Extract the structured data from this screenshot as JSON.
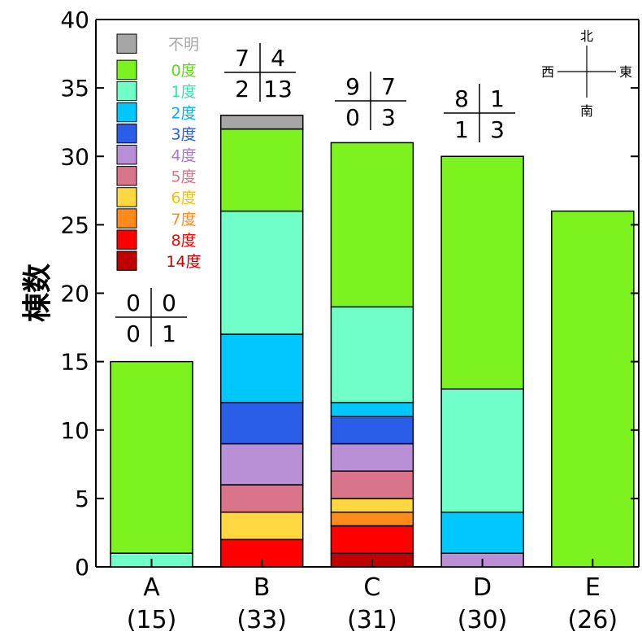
{
  "chart_data": {
    "type": "bar",
    "stacked": true,
    "ylabel": "棟数",
    "ylim": [
      0,
      40
    ],
    "yticks": [
      0,
      5,
      10,
      15,
      20,
      25,
      30,
      35,
      40
    ],
    "categories": [
      "A",
      "B",
      "C",
      "D",
      "E"
    ],
    "category_counts": [
      "(15)",
      "(33)",
      "(31)",
      "(30)",
      "(26)"
    ],
    "series": [
      {
        "name": "14度",
        "color": "#c00000",
        "values": [
          0,
          0,
          1,
          0,
          0
        ]
      },
      {
        "name": "8度",
        "color": "#ff0000",
        "values": [
          0,
          2,
          2,
          0,
          0
        ]
      },
      {
        "name": "7度",
        "color": "#ff8c1a",
        "values": [
          0,
          0,
          1,
          0,
          0
        ]
      },
      {
        "name": "6度",
        "color": "#ffd740",
        "values": [
          0,
          2,
          1,
          0,
          0
        ]
      },
      {
        "name": "5度",
        "color": "#d9748a",
        "values": [
          0,
          2,
          2,
          0,
          0
        ]
      },
      {
        "name": "4度",
        "color": "#b98fd6",
        "values": [
          0,
          3,
          2,
          1,
          0
        ]
      },
      {
        "name": "3度",
        "color": "#2a5ee8",
        "values": [
          0,
          3,
          2,
          0,
          0
        ]
      },
      {
        "name": "2度",
        "color": "#00c8ff",
        "values": [
          0,
          5,
          1,
          3,
          0
        ]
      },
      {
        "name": "1度",
        "color": "#70ffc8",
        "values": [
          1,
          9,
          7,
          9,
          0
        ]
      },
      {
        "name": "0度",
        "color": "#7cf31f",
        "values": [
          14,
          6,
          12,
          17,
          26
        ]
      },
      {
        "name": "不明",
        "color": "#a6a6a6",
        "values": [
          0,
          1,
          0,
          0,
          0
        ]
      }
    ],
    "legend": {
      "placement": "top-left",
      "items": [
        {
          "label": "不明",
          "color": "#a6a6a6",
          "text_color": "#a6a6a6"
        },
        {
          "label": "0度",
          "color": "#7cf31f",
          "text_color": "#66d61a"
        },
        {
          "label": "1度",
          "color": "#70ffc8",
          "text_color": "#3de0b0"
        },
        {
          "label": "2度",
          "color": "#00c8ff",
          "text_color": "#00b2ee"
        },
        {
          "label": "3度",
          "color": "#2a5ee8",
          "text_color": "#2a5ee8"
        },
        {
          "label": "4度",
          "color": "#b98fd6",
          "text_color": "#a57ad0"
        },
        {
          "label": "5度",
          "color": "#d9748a",
          "text_color": "#d9748a"
        },
        {
          "label": "6度",
          "color": "#ffd740",
          "text_color": "#f2c200"
        },
        {
          "label": "7度",
          "color": "#ff8c1a",
          "text_color": "#ff8c1a"
        },
        {
          "label": "8度",
          "color": "#ff0000",
          "text_color": "#ff0000"
        },
        {
          "label": "14度",
          "color": "#c00000",
          "text_color": "#c00000"
        }
      ]
    },
    "direction_counts": [
      {
        "category": "A",
        "top_left": "0",
        "top_right": "0",
        "bottom_left": "0",
        "bottom_right": "1"
      },
      {
        "category": "B",
        "top_left": "7",
        "top_right": "4",
        "bottom_left": "2",
        "bottom_right": "13"
      },
      {
        "category": "C",
        "top_left": "9",
        "top_right": "7",
        "bottom_left": "0",
        "bottom_right": "3"
      },
      {
        "category": "D",
        "top_left": "8",
        "top_right": "1",
        "bottom_left": "1",
        "bottom_right": "3"
      }
    ],
    "compass": {
      "north": "北",
      "south": "南",
      "east": "東",
      "west": "西"
    },
    "grid": false
  }
}
